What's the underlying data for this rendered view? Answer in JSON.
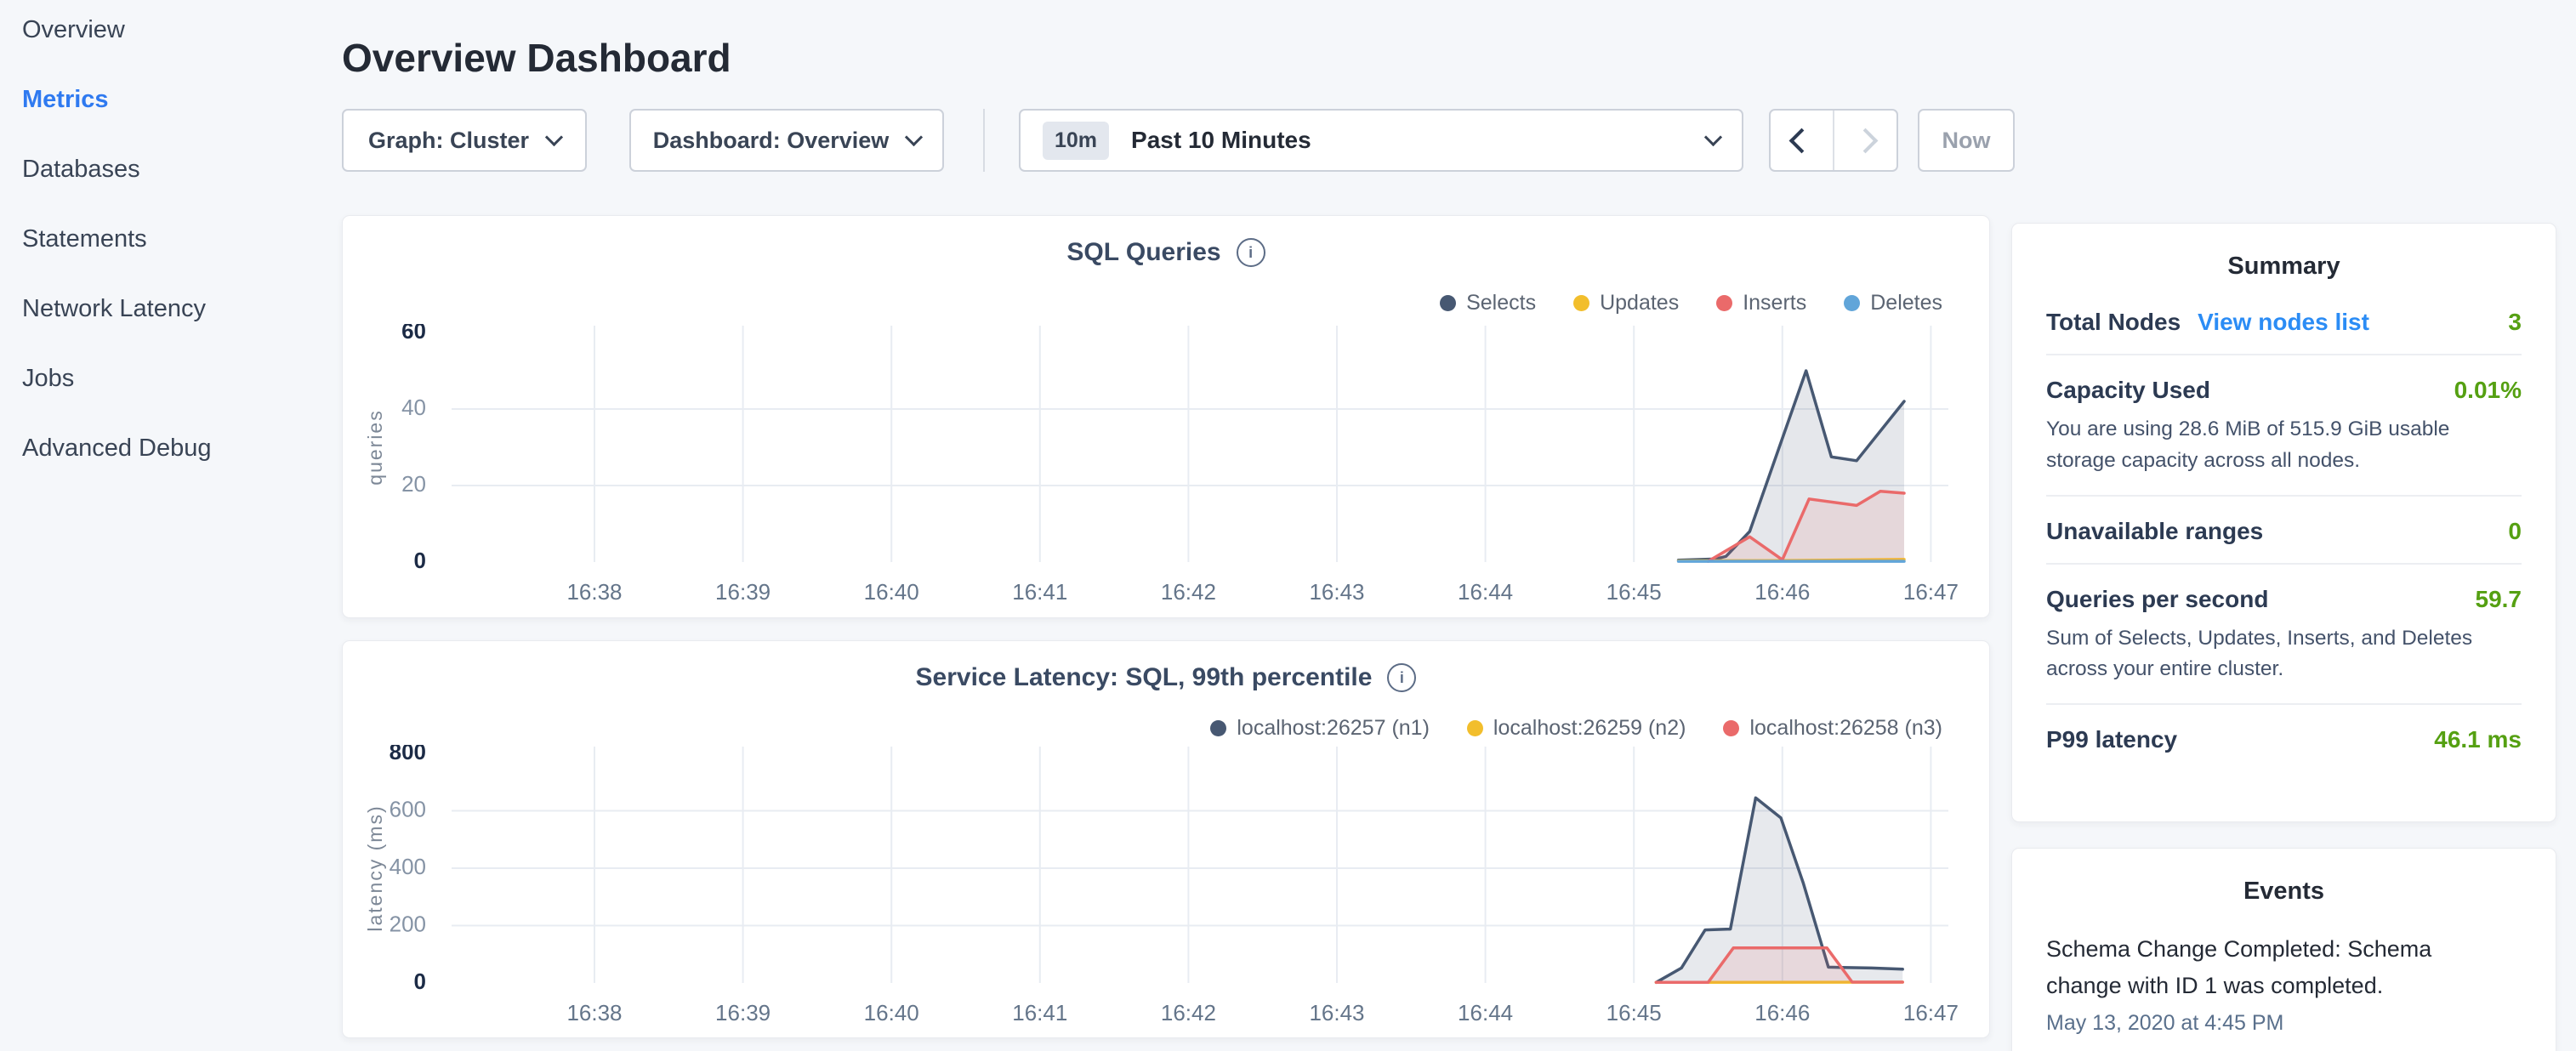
{
  "colors": {
    "nav_active_blue": "#2f7af0",
    "link_blue": "#2b8cf5",
    "value_green": "#55a012",
    "series_navy": "#475872",
    "series_yellow": "#f2be2c",
    "series_red": "#ea6a6a",
    "series_blue": "#61a5d9"
  },
  "icons": {
    "info": "i"
  },
  "sidebar": {
    "items": [
      {
        "label": "Overview"
      },
      {
        "label": "Metrics"
      },
      {
        "label": "Databases"
      },
      {
        "label": "Statements"
      },
      {
        "label": "Network Latency"
      },
      {
        "label": "Jobs"
      },
      {
        "label": "Advanced Debug"
      }
    ]
  },
  "header": {
    "title": "Overview Dashboard"
  },
  "toolbar": {
    "graph_dropdown": {
      "label": "Graph: Cluster"
    },
    "dashboard_dropdown": {
      "label": "Dashboard: Overview"
    },
    "time_selector": {
      "badge": "10m",
      "label": "Past 10 Minutes"
    },
    "now_button": "Now"
  },
  "chart_data": [
    {
      "type": "area",
      "title": "SQL Queries",
      "ylabel": "queries",
      "ylim": [
        0,
        60
      ],
      "y_ticks": [
        0,
        20,
        40,
        60
      ],
      "y_gridlines": [
        20,
        40
      ],
      "x_ticks": [
        {
          "t": 38,
          "label": "16:38"
        },
        {
          "t": 39,
          "label": "16:39"
        },
        {
          "t": 40,
          "label": "16:40"
        },
        {
          "t": 41,
          "label": "16:41"
        },
        {
          "t": 42,
          "label": "16:42"
        },
        {
          "t": 43,
          "label": "16:43"
        },
        {
          "t": 44,
          "label": "16:44"
        },
        {
          "t": 45,
          "label": "16:45"
        },
        {
          "t": 46,
          "label": "16:46"
        },
        {
          "t": 47,
          "label": "16:47"
        }
      ],
      "series": [
        {
          "name": "Selects",
          "color": "#475872",
          "fill": "rgba(71,88,114,0.14)",
          "points": [
            [
              45.3,
              0.5
            ],
            [
              45.55,
              0.8
            ],
            [
              45.62,
              1.5
            ],
            [
              45.78,
              8
            ],
            [
              46.16,
              50
            ],
            [
              46.33,
              27.5
            ],
            [
              46.5,
              26.5
            ],
            [
              46.82,
              42
            ]
          ]
        },
        {
          "name": "Updates",
          "color": "#f2be2c",
          "fill": "rgba(242,190,44,0.18)",
          "points": [
            [
              45.3,
              0.3
            ],
            [
              46.0,
              0.4
            ],
            [
              46.82,
              0.7
            ]
          ]
        },
        {
          "name": "Inserts",
          "color": "#ea6a6a",
          "fill": "rgba(234,106,106,0.13)",
          "points": [
            [
              45.5,
              0.2
            ],
            [
              45.78,
              6.6
            ],
            [
              46.0,
              0.6
            ],
            [
              46.18,
              16.5
            ],
            [
              46.5,
              14.8
            ],
            [
              46.66,
              18.5
            ],
            [
              46.82,
              18
            ]
          ]
        },
        {
          "name": "Deletes",
          "color": "#61a5d9",
          "fill": "rgba(97,165,217,0.0)",
          "points": [
            [
              45.3,
              0.2
            ],
            [
              46.82,
              0.2
            ]
          ]
        }
      ]
    },
    {
      "type": "area",
      "title": "Service Latency: SQL, 99th percentile",
      "ylabel": "latency (ms)",
      "ylim": [
        0,
        800
      ],
      "y_ticks": [
        0,
        200,
        400,
        600,
        800
      ],
      "y_gridlines": [
        200,
        400,
        600
      ],
      "x_ticks": [
        {
          "t": 38,
          "label": "16:38"
        },
        {
          "t": 39,
          "label": "16:39"
        },
        {
          "t": 40,
          "label": "16:40"
        },
        {
          "t": 41,
          "label": "16:41"
        },
        {
          "t": 42,
          "label": "16:42"
        },
        {
          "t": 43,
          "label": "16:43"
        },
        {
          "t": 44,
          "label": "16:44"
        },
        {
          "t": 45,
          "label": "16:45"
        },
        {
          "t": 46,
          "label": "16:46"
        },
        {
          "t": 47,
          "label": "16:47"
        }
      ],
      "series": [
        {
          "name": "localhost:26257 (n1)",
          "color": "#475872",
          "fill": "rgba(71,88,114,0.13)",
          "points": [
            [
              45.15,
              2
            ],
            [
              45.32,
              52
            ],
            [
              45.48,
              185
            ],
            [
              45.65,
              188
            ],
            [
              45.82,
              645
            ],
            [
              45.99,
              575
            ],
            [
              46.14,
              350
            ],
            [
              46.31,
              55
            ],
            [
              46.6,
              52
            ],
            [
              46.81,
              48
            ]
          ]
        },
        {
          "name": "localhost:26259 (n2)",
          "color": "#f2be2c",
          "fill": "rgba(242,190,44,0.18)",
          "points": [
            [
              45.15,
              2
            ],
            [
              46.81,
              3
            ]
          ]
        },
        {
          "name": "localhost:26258 (n3)",
          "color": "#ea6a6a",
          "fill": "rgba(234,106,106,0.13)",
          "points": [
            [
              45.15,
              2
            ],
            [
              45.5,
              2
            ],
            [
              45.67,
              122
            ],
            [
              46.3,
              122
            ],
            [
              46.47,
              3
            ],
            [
              46.81,
              3
            ]
          ]
        }
      ]
    }
  ],
  "summary": {
    "title": "Summary",
    "rows": [
      {
        "label": "Total Nodes",
        "link": "View nodes list",
        "value": "3",
        "description": ""
      },
      {
        "label": "Capacity Used",
        "value": "0.01%",
        "description": "You are using 28.6 MiB of 515.9 GiB usable storage capacity across all nodes."
      },
      {
        "label": "Unavailable ranges",
        "value": "0",
        "description": ""
      },
      {
        "label": "Queries per second",
        "value": "59.7",
        "description": "Sum of Selects, Updates, Inserts, and Deletes across your entire cluster."
      },
      {
        "label": "P99 latency",
        "value": "46.1 ms",
        "description": ""
      }
    ]
  },
  "events": {
    "title": "Events",
    "items": [
      {
        "message": "Schema Change Completed: Schema change with ID 1 was completed.",
        "timestamp": "May 13, 2020 at 4:45 PM"
      }
    ]
  }
}
